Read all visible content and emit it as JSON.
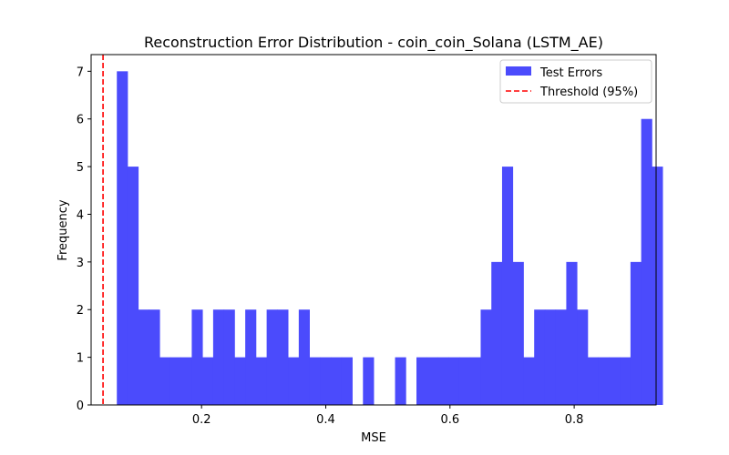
{
  "chart_data": {
    "type": "bar",
    "title": "Reconstruction Error Distribution - coin_coin_Solana (LSTM_AE)",
    "xlabel": "MSE",
    "ylabel": "Frequency",
    "xlim": [
      0.0222,
      0.9319
    ],
    "ylim": [
      0,
      7.35
    ],
    "xticks": [
      "0.2",
      "0.4",
      "0.6",
      "0.8"
    ],
    "xtick_values": [
      0.2,
      0.4,
      0.6,
      0.8
    ],
    "yticks": [
      "0",
      "1",
      "2",
      "3",
      "4",
      "5",
      "6",
      "7"
    ],
    "ytick_values": [
      0,
      1,
      2,
      3,
      4,
      5,
      6,
      7
    ],
    "bin_start": 0.0636,
    "bin_width": 0.01723,
    "counts": [
      7,
      5,
      2,
      2,
      1,
      1,
      1,
      2,
      1,
      2,
      2,
      1,
      2,
      1,
      2,
      2,
      1,
      2,
      1,
      1,
      1,
      1,
      0,
      1,
      0,
      0,
      1,
      0,
      1,
      1,
      1,
      1,
      1,
      1,
      2,
      3,
      5,
      3,
      1,
      2,
      2,
      2,
      3,
      2,
      1,
      1,
      1,
      1,
      3,
      6,
      5
    ],
    "threshold": 0.0414,
    "grid": false,
    "legend_position": "top-right",
    "series": [
      {
        "name": "Test Errors",
        "color": "#4b4bfc"
      },
      {
        "name": "Threshold (95%)",
        "color": "#ff0000"
      }
    ]
  }
}
